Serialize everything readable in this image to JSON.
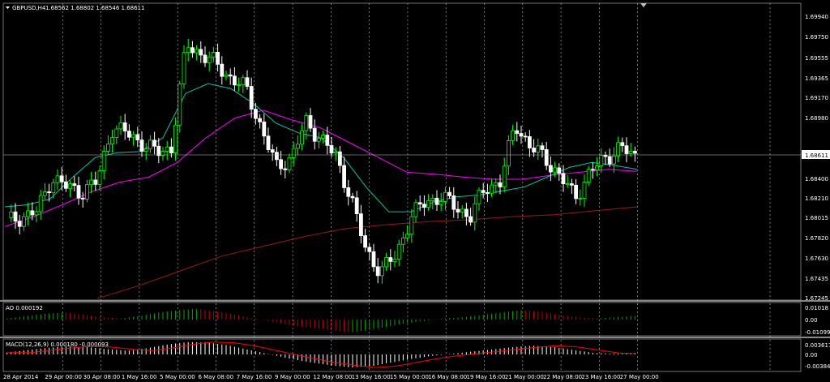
{
  "main_header": {
    "symbol": "GBPUSD,H4",
    "ohlc": "1.68562 1.68802 1.68546 1.68611"
  },
  "colors": {
    "background": "#000000",
    "grid": "#c0c0c0",
    "candle_bull": "#00ff00",
    "candle_bear": "#ffffff",
    "ma_fast": "#00c8a0",
    "ma_mid": "#ff00ff",
    "ma_slow": "#9a1a1a",
    "ao_up": "#00aa00",
    "ao_down": "#cc0000",
    "macd_hist": "#ffffff",
    "macd_signal": "#ff0000",
    "current_price_line": "#c0c0c0"
  },
  "price_axis": {
    "ticks": [
      "1.69940",
      "1.69750",
      "1.69555",
      "1.69365",
      "1.69170",
      "1.68980",
      "1.68400",
      "1.68210",
      "1.68015",
      "1.67820",
      "1.67630",
      "1.67435",
      "1.67245"
    ],
    "current_price": "1.68611"
  },
  "ao_panel": {
    "label": "AO 0.000192",
    "ticks": [
      "0.01018",
      "0.00",
      "-0.01099"
    ]
  },
  "macd_panel": {
    "label": "MACD(12,26,9) 0.000180 -0.000093",
    "ticks": [
      "0.003617",
      "0.00",
      "-0.00384"
    ]
  },
  "time_axis": {
    "labels": [
      "28 Apr 2014",
      "29 Apr 00:00",
      "30 Apr 08:00",
      "1 May 16:00",
      "5 May 00:00",
      "6 May 08:00",
      "7 May 16:00",
      "9 May 00:00",
      "12 May 08:00",
      "13 May 16:00",
      "15 May 00:00",
      "16 May 08:00",
      "19 May 16:00",
      "21 May 00:00",
      "22 May 08:00",
      "23 May 16:00",
      "27 May 00:00"
    ]
  },
  "chart_data": {
    "type": "candlestick",
    "symbol": "GBPUSD",
    "timeframe": "H4",
    "y_range": [
      1.6717,
      1.7005
    ],
    "x": [
      "28 Apr 2014",
      "29 Apr 00:00",
      "30 Apr 08:00",
      "1 May 16:00",
      "5 May 00:00",
      "6 May 08:00",
      "7 May 16:00",
      "9 May 00:00",
      "12 May 08:00",
      "13 May 16:00",
      "15 May 00:00",
      "16 May 08:00",
      "19 May 16:00",
      "21 May 00:00",
      "22 May 08:00",
      "23 May 16:00",
      "27 May 00:00"
    ],
    "close_path": [
      1.6795,
      1.68,
      1.6805,
      1.684,
      1.683,
      1.6825,
      1.6835,
      1.689,
      1.6885,
      1.6875,
      1.6865,
      1.687,
      1.6975,
      1.6965,
      1.6955,
      1.694,
      1.693,
      1.689,
      1.685,
      1.686,
      1.6895,
      1.688,
      1.686,
      1.682,
      1.6765,
      1.6745,
      1.676,
      1.68,
      1.6815,
      1.682,
      1.681,
      1.68,
      1.683,
      1.6835,
      1.6895,
      1.687,
      1.686,
      1.684,
      1.682,
      1.6845,
      1.686,
      1.687,
      1.6861
    ],
    "ma_fast_path": [
      1.681,
      1.6812,
      1.6818,
      1.684,
      1.686,
      1.6865,
      1.6866,
      1.688,
      1.6925,
      1.6935,
      1.693,
      1.6915,
      1.6895,
      1.6885,
      1.688,
      1.686,
      1.683,
      1.6805,
      1.6805,
      1.6815,
      1.682,
      1.6822,
      1.6826,
      1.683,
      1.684,
      1.685,
      1.6855,
      1.6852,
      1.6848
    ],
    "ma_mid_path": [
      1.679,
      1.68,
      1.6812,
      1.6825,
      1.6835,
      1.684,
      1.6855,
      1.688,
      1.69,
      1.6908,
      1.6898,
      1.689,
      1.6875,
      1.686,
      1.6845,
      1.6843,
      1.684,
      1.6838,
      1.6838,
      1.6842,
      1.6845,
      1.6848,
      1.6846
    ],
    "ma_slow_path": [
      1.6717,
      1.673,
      1.6745,
      1.676,
      1.677,
      1.678,
      1.6788,
      1.6792,
      1.6795,
      1.6797,
      1.68,
      1.6802,
      1.6806,
      1.681
    ],
    "ao_values": [
      0.001,
      0.003,
      0.005,
      0.006,
      0.004,
      0.002,
      0.001,
      0.003,
      0.006,
      0.008,
      0.009,
      0.007,
      0.004,
      0.001,
      -0.002,
      -0.005,
      -0.007,
      -0.009,
      -0.011,
      -0.009,
      -0.006,
      -0.003,
      -0.001,
      0.001,
      0.002,
      0.004,
      0.006,
      0.008,
      0.007,
      0.004,
      0.002,
      0.001,
      0.002,
      0.003
    ],
    "macd_values": [
      0.0005,
      0.0012,
      0.0018,
      0.0022,
      0.002,
      0.0014,
      0.001,
      0.0018,
      0.0028,
      0.0034,
      0.0032,
      0.0024,
      0.0012,
      0.0,
      -0.0012,
      -0.0022,
      -0.003,
      -0.0036,
      -0.0032,
      -0.0022,
      -0.0012,
      -0.0004,
      0.0002,
      0.0008,
      0.0014,
      0.002,
      0.0024,
      0.002,
      0.0012,
      0.0004,
      0.0002,
      0.0004
    ]
  }
}
